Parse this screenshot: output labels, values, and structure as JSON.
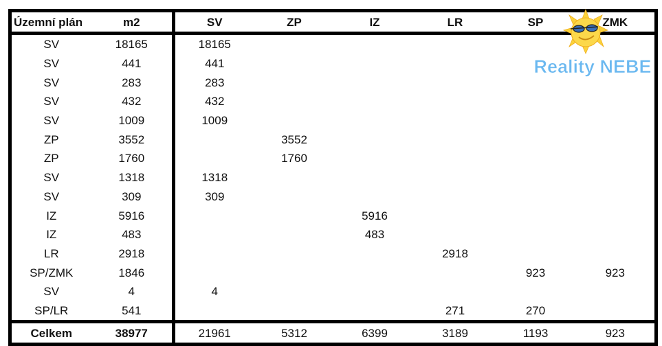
{
  "headers": [
    "Územní plán",
    "m2",
    "SV",
    "ZP",
    "IZ",
    "LR",
    "SP",
    "ZMK"
  ],
  "rows": [
    [
      "SV",
      "18165",
      "18165",
      "",
      "",
      "",
      "",
      ""
    ],
    [
      "SV",
      "441",
      "441",
      "",
      "",
      "",
      "",
      ""
    ],
    [
      "SV",
      "283",
      "283",
      "",
      "",
      "",
      "",
      ""
    ],
    [
      "SV",
      "432",
      "432",
      "",
      "",
      "",
      "",
      ""
    ],
    [
      "SV",
      "1009",
      "1009",
      "",
      "",
      "",
      "",
      ""
    ],
    [
      "ZP",
      "3552",
      "",
      "3552",
      "",
      "",
      "",
      ""
    ],
    [
      "ZP",
      "1760",
      "",
      "1760",
      "",
      "",
      "",
      ""
    ],
    [
      "SV",
      "1318",
      "1318",
      "",
      "",
      "",
      "",
      ""
    ],
    [
      "SV",
      "309",
      "309",
      "",
      "",
      "",
      "",
      ""
    ],
    [
      "IZ",
      "5916",
      "",
      "",
      "5916",
      "",
      "",
      ""
    ],
    [
      "IZ",
      "483",
      "",
      "",
      "483",
      "",
      "",
      ""
    ],
    [
      "LR",
      "2918",
      "",
      "",
      "",
      "2918",
      "",
      ""
    ],
    [
      "SP/ZMK",
      "1846",
      "",
      "",
      "",
      "",
      "923",
      "923"
    ],
    [
      "SV",
      "4",
      "4",
      "",
      "",
      "",
      "",
      ""
    ],
    [
      "SP/LR",
      "541",
      "",
      "",
      "",
      "271",
      "270",
      ""
    ]
  ],
  "totals": [
    "Celkem",
    "38977",
    "21961",
    "5312",
    "6399",
    "3189",
    "1193",
    "923"
  ],
  "logo": {
    "text": "Reality NEBE",
    "icon": "sun-with-sunglasses-icon",
    "text_color": "#6ab8f0",
    "sun_color": "#fbd23a"
  }
}
